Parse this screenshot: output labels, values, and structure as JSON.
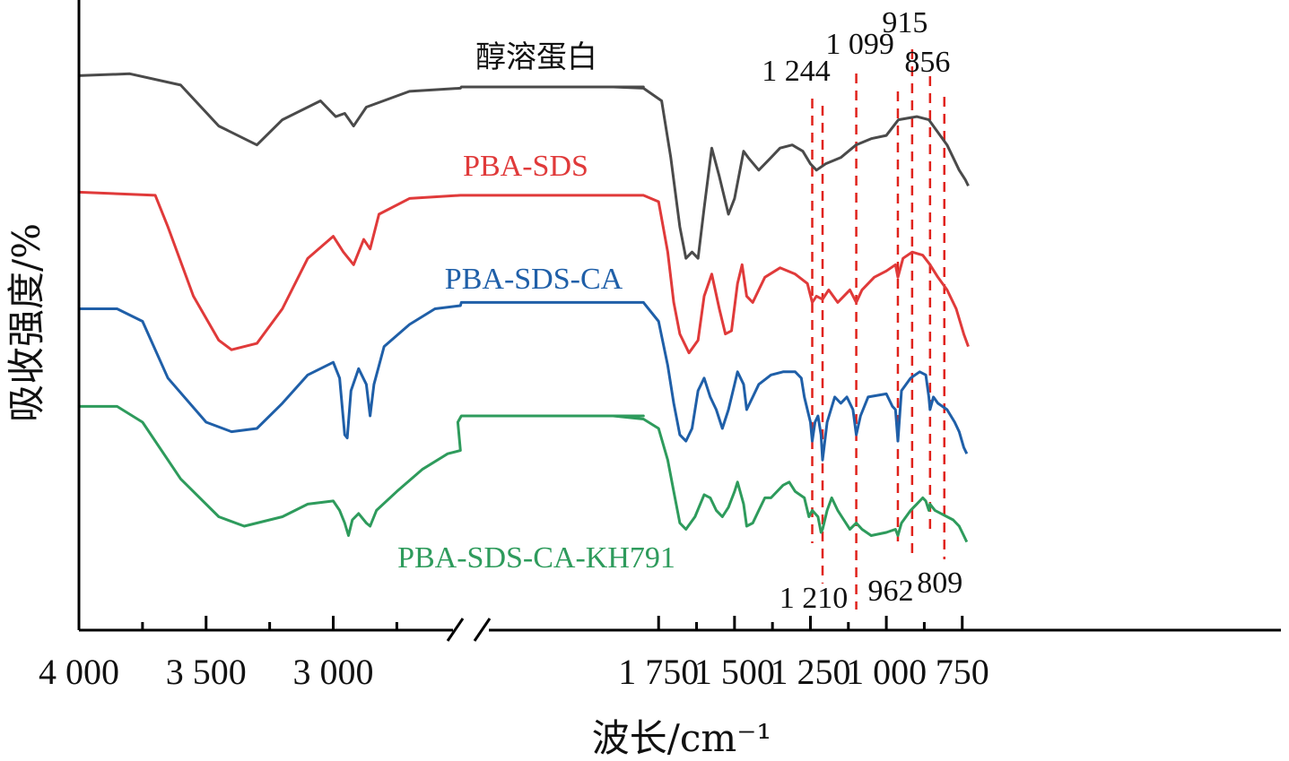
{
  "chart_data": {
    "type": "line",
    "xlabel": "波长/cm⁻¹",
    "ylabel": "吸收强度/%",
    "x_axis": {
      "direction": "reversed",
      "broken": true,
      "segments": [
        [
          4000,
          2500
        ],
        [
          1900,
          730
        ]
      ],
      "ticks": [
        {
          "value": 4000,
          "label": "4 000"
        },
        {
          "value": 3500,
          "label": "3 500"
        },
        {
          "value": 3000,
          "label": "3 000"
        },
        {
          "value": 1750,
          "label": "1 750"
        },
        {
          "value": 1500,
          "label": "1 500"
        },
        {
          "value": 1250,
          "label": "1 250"
        },
        {
          "value": 1000,
          "label": "1 000"
        },
        {
          "value": 750,
          "label": "750"
        }
      ],
      "minor_ticks": [
        3750,
        3250,
        2750,
        1625,
        1375,
        1125,
        875
      ]
    },
    "ylim": [
      0,
      100
    ],
    "grid": false,
    "series": [
      {
        "name": "醇溶蛋白",
        "color": "#4a4a4a",
        "points": [
          [
            4000,
            88
          ],
          [
            3800,
            88.3
          ],
          [
            3600,
            86.5
          ],
          [
            3450,
            80
          ],
          [
            3300,
            77
          ],
          [
            3200,
            81
          ],
          [
            3050,
            84
          ],
          [
            2990,
            81.5
          ],
          [
            2955,
            82
          ],
          [
            2920,
            80
          ],
          [
            2870,
            83
          ],
          [
            2700,
            85.5
          ],
          [
            2500,
            86
          ],
          [
            1900,
            86.2
          ],
          [
            1800,
            86
          ],
          [
            1740,
            84
          ],
          [
            1710,
            75
          ],
          [
            1680,
            64
          ],
          [
            1660,
            59
          ],
          [
            1640,
            60
          ],
          [
            1620,
            59
          ],
          [
            1600,
            67
          ],
          [
            1575,
            76.5
          ],
          [
            1550,
            72
          ],
          [
            1520,
            66
          ],
          [
            1500,
            68.5
          ],
          [
            1470,
            76
          ],
          [
            1455,
            75
          ],
          [
            1420,
            73
          ],
          [
            1380,
            75
          ],
          [
            1350,
            76.5
          ],
          [
            1310,
            77
          ],
          [
            1275,
            76
          ],
          [
            1250,
            74
          ],
          [
            1230,
            73
          ],
          [
            1200,
            74
          ],
          [
            1150,
            75
          ],
          [
            1100,
            77
          ],
          [
            1050,
            78
          ],
          [
            1000,
            78.5
          ],
          [
            960,
            81
          ],
          [
            900,
            81.5
          ],
          [
            860,
            81
          ],
          [
            830,
            79
          ],
          [
            800,
            77
          ],
          [
            780,
            75
          ],
          [
            760,
            73
          ],
          [
            740,
            71.5
          ],
          [
            730,
            70.5
          ]
        ]
      },
      {
        "name": "PBA-SDS",
        "color": "#e03a3a",
        "points": [
          [
            4000,
            69.5
          ],
          [
            3700,
            69
          ],
          [
            3650,
            64
          ],
          [
            3550,
            53
          ],
          [
            3450,
            46
          ],
          [
            3400,
            44.5
          ],
          [
            3300,
            45.5
          ],
          [
            3200,
            51
          ],
          [
            3100,
            59
          ],
          [
            3000,
            62.5
          ],
          [
            2960,
            60
          ],
          [
            2920,
            58
          ],
          [
            2880,
            62
          ],
          [
            2855,
            60.5
          ],
          [
            2820,
            66
          ],
          [
            2700,
            68.5
          ],
          [
            2500,
            69
          ],
          [
            1900,
            69
          ],
          [
            1800,
            69
          ],
          [
            1750,
            68
          ],
          [
            1720,
            60
          ],
          [
            1700,
            52
          ],
          [
            1680,
            47
          ],
          [
            1650,
            44
          ],
          [
            1620,
            46
          ],
          [
            1600,
            53
          ],
          [
            1575,
            56.5
          ],
          [
            1550,
            51
          ],
          [
            1530,
            47
          ],
          [
            1510,
            47.5
          ],
          [
            1490,
            55
          ],
          [
            1475,
            58
          ],
          [
            1460,
            53
          ],
          [
            1440,
            52
          ],
          [
            1420,
            54
          ],
          [
            1400,
            56
          ],
          [
            1350,
            57.5
          ],
          [
            1300,
            56.5
          ],
          [
            1260,
            55
          ],
          [
            1244,
            52
          ],
          [
            1230,
            53
          ],
          [
            1210,
            52.5
          ],
          [
            1190,
            54
          ],
          [
            1160,
            52
          ],
          [
            1140,
            53
          ],
          [
            1120,
            54
          ],
          [
            1099,
            52
          ],
          [
            1080,
            54
          ],
          [
            1040,
            56
          ],
          [
            1000,
            57
          ],
          [
            970,
            58
          ],
          [
            962,
            56
          ],
          [
            945,
            59
          ],
          [
            915,
            60
          ],
          [
            880,
            59.5
          ],
          [
            856,
            58
          ],
          [
            830,
            56
          ],
          [
            800,
            54
          ],
          [
            770,
            51
          ],
          [
            745,
            47
          ],
          [
            730,
            45
          ]
        ]
      },
      {
        "name": "PBA-SDS-CA",
        "color": "#1f5fa8",
        "points": [
          [
            4000,
            51
          ],
          [
            3850,
            51
          ],
          [
            3750,
            49
          ],
          [
            3650,
            40
          ],
          [
            3500,
            33
          ],
          [
            3400,
            31.5
          ],
          [
            3300,
            32
          ],
          [
            3200,
            36
          ],
          [
            3100,
            40.5
          ],
          [
            3000,
            42.5
          ],
          [
            2975,
            40
          ],
          [
            2955,
            31
          ],
          [
            2945,
            30.5
          ],
          [
            2930,
            38
          ],
          [
            2900,
            41.5
          ],
          [
            2870,
            39
          ],
          [
            2855,
            34
          ],
          [
            2840,
            39
          ],
          [
            2800,
            45
          ],
          [
            2700,
            48.5
          ],
          [
            2600,
            51
          ],
          [
            2500,
            51.5
          ],
          [
            1900,
            52
          ],
          [
            1800,
            52
          ],
          [
            1750,
            49
          ],
          [
            1720,
            42
          ],
          [
            1700,
            36
          ],
          [
            1680,
            31
          ],
          [
            1660,
            30
          ],
          [
            1640,
            32
          ],
          [
            1620,
            38
          ],
          [
            1600,
            40
          ],
          [
            1580,
            37
          ],
          [
            1560,
            35
          ],
          [
            1540,
            32
          ],
          [
            1520,
            35
          ],
          [
            1500,
            39
          ],
          [
            1490,
            41
          ],
          [
            1470,
            39
          ],
          [
            1460,
            35
          ],
          [
            1440,
            37
          ],
          [
            1420,
            39
          ],
          [
            1380,
            40.5
          ],
          [
            1340,
            41
          ],
          [
            1300,
            41
          ],
          [
            1280,
            40
          ],
          [
            1270,
            37
          ],
          [
            1260,
            35
          ],
          [
            1250,
            33
          ],
          [
            1244,
            30
          ],
          [
            1235,
            33
          ],
          [
            1225,
            34
          ],
          [
            1215,
            31
          ],
          [
            1210,
            27
          ],
          [
            1195,
            33
          ],
          [
            1170,
            37
          ],
          [
            1150,
            36
          ],
          [
            1130,
            37
          ],
          [
            1110,
            35
          ],
          [
            1099,
            31
          ],
          [
            1085,
            34
          ],
          [
            1060,
            37
          ],
          [
            1000,
            37.5
          ],
          [
            980,
            35.5
          ],
          [
            970,
            35
          ],
          [
            962,
            30
          ],
          [
            950,
            38
          ],
          [
            920,
            40
          ],
          [
            890,
            41
          ],
          [
            870,
            40.5
          ],
          [
            860,
            37
          ],
          [
            856,
            35
          ],
          [
            845,
            37
          ],
          [
            830,
            36
          ],
          [
            800,
            35
          ],
          [
            775,
            33
          ],
          [
            760,
            31.5
          ],
          [
            745,
            29
          ],
          [
            735,
            28
          ]
        ]
      },
      {
        "name": "PBA-SDS-CA-KH791",
        "color": "#2e9b5c",
        "points": [
          [
            4000,
            35.5
          ],
          [
            3850,
            35.5
          ],
          [
            3750,
            33
          ],
          [
            3600,
            24
          ],
          [
            3450,
            18
          ],
          [
            3350,
            16.5
          ],
          [
            3200,
            18
          ],
          [
            3100,
            20
          ],
          [
            3000,
            20.5
          ],
          [
            2975,
            19
          ],
          [
            2955,
            17
          ],
          [
            2940,
            15
          ],
          [
            2925,
            17.5
          ],
          [
            2900,
            18.5
          ],
          [
            2870,
            17
          ],
          [
            2855,
            16.5
          ],
          [
            2830,
            19
          ],
          [
            2750,
            22
          ],
          [
            2650,
            25.5
          ],
          [
            2550,
            28
          ],
          [
            2500,
            28.5
          ],
          [
            2510,
            33
          ],
          [
            1900,
            34
          ],
          [
            1800,
            33.5
          ],
          [
            1750,
            32
          ],
          [
            1720,
            27
          ],
          [
            1700,
            22
          ],
          [
            1680,
            17
          ],
          [
            1660,
            16
          ],
          [
            1630,
            18
          ],
          [
            1600,
            21.5
          ],
          [
            1580,
            21
          ],
          [
            1560,
            19
          ],
          [
            1540,
            18
          ],
          [
            1520,
            19.5
          ],
          [
            1500,
            22
          ],
          [
            1490,
            23.5
          ],
          [
            1470,
            20
          ],
          [
            1460,
            16.5
          ],
          [
            1440,
            17
          ],
          [
            1420,
            19
          ],
          [
            1400,
            21
          ],
          [
            1380,
            21
          ],
          [
            1340,
            23
          ],
          [
            1320,
            23.5
          ],
          [
            1300,
            22
          ],
          [
            1270,
            21
          ],
          [
            1255,
            18
          ],
          [
            1244,
            19
          ],
          [
            1225,
            18
          ],
          [
            1215,
            15.5
          ],
          [
            1210,
            16
          ],
          [
            1195,
            19
          ],
          [
            1180,
            21
          ],
          [
            1160,
            19
          ],
          [
            1140,
            17.5
          ],
          [
            1120,
            16
          ],
          [
            1099,
            17
          ],
          [
            1080,
            16
          ],
          [
            1050,
            15
          ],
          [
            1000,
            15.5
          ],
          [
            970,
            16
          ],
          [
            962,
            15
          ],
          [
            950,
            17
          ],
          [
            920,
            19
          ],
          [
            900,
            20
          ],
          [
            880,
            21
          ],
          [
            870,
            20.5
          ],
          [
            860,
            19
          ],
          [
            856,
            20
          ],
          [
            840,
            19
          ],
          [
            820,
            18.5
          ],
          [
            800,
            18
          ],
          [
            780,
            17.5
          ],
          [
            760,
            16.5
          ],
          [
            745,
            15
          ],
          [
            735,
            14
          ]
        ]
      }
    ],
    "peak_markers": [
      {
        "value": 1244,
        "label": "1 244"
      },
      {
        "value": 1210,
        "label": "1 210"
      },
      {
        "value": 1099,
        "label": "1 099"
      },
      {
        "value": 962,
        "label": "962"
      },
      {
        "value": 915,
        "label": "915"
      },
      {
        "value": 856,
        "label": "856"
      },
      {
        "value": 809,
        "label": "809"
      }
    ],
    "marker_color": "#e0221b"
  }
}
